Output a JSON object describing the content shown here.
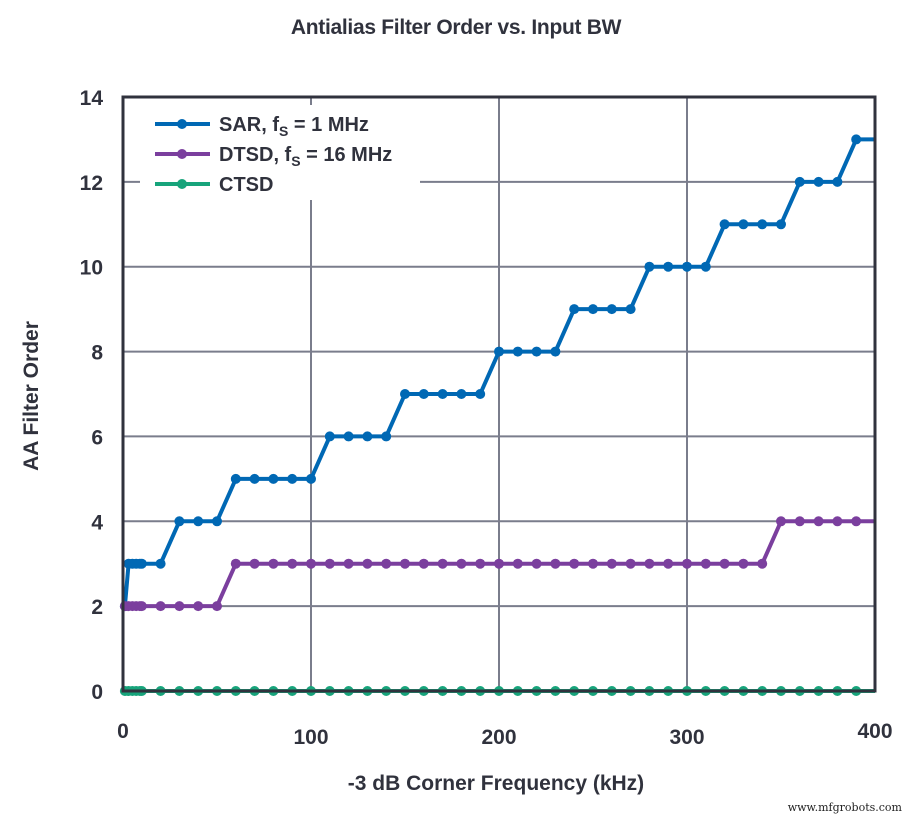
{
  "chart_data": {
    "type": "line",
    "title": "Antialias Filter Order vs. Input BW",
    "xlabel": "-3 dB Corner Frequency (kHz)",
    "ylabel": "AA Filter Order",
    "xlim": [
      0,
      400
    ],
    "ylim": [
      0,
      14
    ],
    "xticks": [
      0,
      100,
      200,
      300,
      400
    ],
    "yticks": [
      0,
      2,
      4,
      6,
      8,
      10,
      12,
      14
    ],
    "grid": true,
    "legend_position": "upper left",
    "series": [
      {
        "name": "SAR, fS = 1 MHz",
        "label_main": "SAR, f",
        "label_sub": "S",
        "label_rest": " = 1 MHz",
        "color": "#0068b4",
        "x": [
          1,
          3,
          5,
          7,
          9,
          10,
          20,
          30,
          40,
          50,
          60,
          70,
          80,
          90,
          100,
          110,
          120,
          130,
          140,
          150,
          160,
          170,
          180,
          190,
          200,
          210,
          220,
          230,
          240,
          250,
          260,
          270,
          280,
          290,
          300,
          310,
          320,
          330,
          340,
          350,
          360,
          370,
          380,
          390,
          400
        ],
        "y": [
          2,
          3,
          3,
          3,
          3,
          3,
          3,
          4,
          4,
          4,
          5,
          5,
          5,
          5,
          5,
          6,
          6,
          6,
          6,
          7,
          7,
          7,
          7,
          7,
          8,
          8,
          8,
          8,
          9,
          9,
          9,
          9,
          10,
          10,
          10,
          10,
          11,
          11,
          11,
          11,
          12,
          12,
          12,
          13,
          13
        ]
      },
      {
        "name": "DTSD, fS = 16 MHz",
        "label_main": "DTSD, f",
        "label_sub": "S",
        "label_rest": " = 16 MHz",
        "color": "#7b3f9e",
        "x": [
          1,
          3,
          5,
          7,
          9,
          10,
          20,
          30,
          40,
          50,
          60,
          70,
          80,
          90,
          100,
          110,
          120,
          130,
          140,
          150,
          160,
          170,
          180,
          190,
          200,
          210,
          220,
          230,
          240,
          250,
          260,
          270,
          280,
          290,
          300,
          310,
          320,
          330,
          340,
          350,
          360,
          370,
          380,
          390,
          400
        ],
        "y": [
          2,
          2,
          2,
          2,
          2,
          2,
          2,
          2,
          2,
          2,
          3,
          3,
          3,
          3,
          3,
          3,
          3,
          3,
          3,
          3,
          3,
          3,
          3,
          3,
          3,
          3,
          3,
          3,
          3,
          3,
          3,
          3,
          3,
          3,
          3,
          3,
          3,
          3,
          3,
          4,
          4,
          4,
          4,
          4,
          4
        ]
      },
      {
        "name": "CTSD",
        "label_main": "CTSD",
        "label_sub": "",
        "label_rest": "",
        "color": "#17a47b",
        "x": [
          1,
          3,
          5,
          7,
          9,
          10,
          20,
          30,
          40,
          50,
          60,
          70,
          80,
          90,
          100,
          110,
          120,
          130,
          140,
          150,
          160,
          170,
          180,
          190,
          200,
          210,
          220,
          230,
          240,
          250,
          260,
          270,
          280,
          290,
          300,
          310,
          320,
          330,
          340,
          350,
          360,
          370,
          380,
          390,
          400
        ],
        "y": [
          0,
          0,
          0,
          0,
          0,
          0,
          0,
          0,
          0,
          0,
          0,
          0,
          0,
          0,
          0,
          0,
          0,
          0,
          0,
          0,
          0,
          0,
          0,
          0,
          0,
          0,
          0,
          0,
          0,
          0,
          0,
          0,
          0,
          0,
          0,
          0,
          0,
          0,
          0,
          0,
          0,
          0,
          0,
          0,
          0
        ]
      }
    ]
  },
  "watermark": "www.mfgrobots.com",
  "style": {
    "axis_color": "#30323d",
    "grid_color": "#7a7d8c",
    "text_color": "#30323d"
  }
}
